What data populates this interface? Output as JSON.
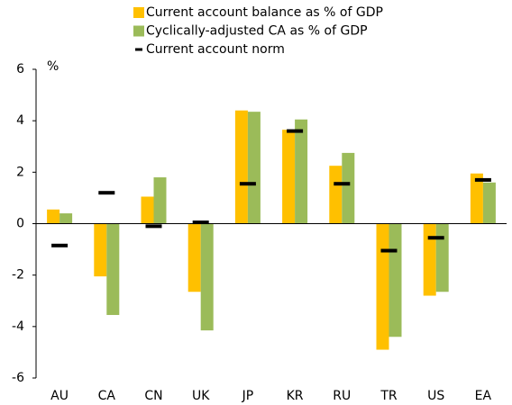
{
  "chart_data": {
    "type": "bar",
    "y_label": "%",
    "categories": [
      "AU",
      "CA",
      "CN",
      "UK",
      "JP",
      "KR",
      "RU",
      "TR",
      "US",
      "EA"
    ],
    "series": [
      {
        "name": "Current account balance as % of GDP",
        "color": "#ffc000",
        "values": [
          0.55,
          -2.05,
          1.05,
          -2.65,
          4.4,
          3.65,
          2.25,
          -4.9,
          -2.8,
          1.95
        ]
      },
      {
        "name": "Cyclically-adjusted CA as % of GDP",
        "color": "#9bbb59",
        "values": [
          0.4,
          -3.55,
          1.8,
          -4.15,
          4.35,
          4.05,
          2.75,
          -4.4,
          -2.65,
          1.6
        ]
      },
      {
        "name": "Current account norm",
        "color": "#000000",
        "marker": "dash",
        "values": [
          -0.85,
          1.2,
          -0.1,
          0.05,
          1.55,
          3.6,
          1.55,
          -1.05,
          -0.55,
          1.7
        ]
      }
    ],
    "ylim": [
      -6,
      6
    ],
    "yticks": [
      -6,
      -4,
      -2,
      0,
      2,
      4,
      6
    ],
    "grid": false
  }
}
